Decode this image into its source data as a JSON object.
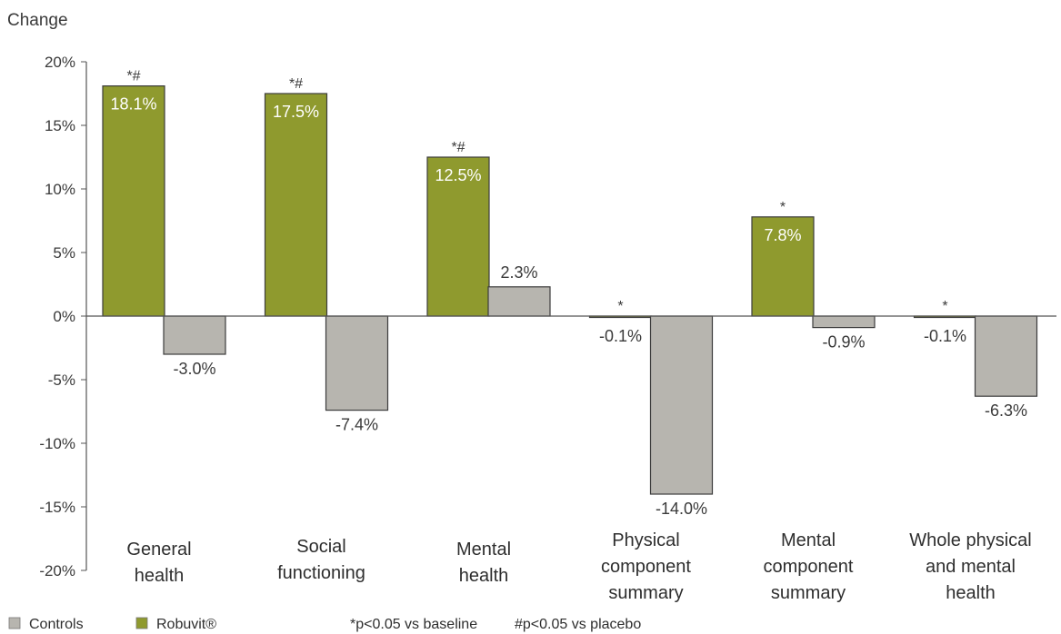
{
  "chart_data": {
    "type": "bar",
    "ylabel": "Change",
    "ylim": [
      -20,
      20
    ],
    "yticks": [
      20,
      15,
      10,
      5,
      0,
      -5,
      -10,
      -15,
      -20
    ],
    "ytick_labels": [
      "20%",
      "15%",
      "10%",
      "5%",
      "0%",
      "-5%",
      "-10%",
      "-15%",
      "-20%"
    ],
    "categories": [
      [
        "General",
        "health"
      ],
      [
        "Social",
        "functioning"
      ],
      [
        "Mental",
        "health"
      ],
      [
        "Physical",
        "component",
        "summary"
      ],
      [
        "Mental",
        "component",
        "summary"
      ],
      [
        "Whole physical",
        "and mental",
        "health"
      ]
    ],
    "series": [
      {
        "name": "Robuvit®",
        "color": "#8f9a2e",
        "values": [
          18.1,
          17.5,
          12.5,
          -0.1,
          7.8,
          -0.1
        ],
        "labels": [
          "18.1%",
          "17.5%",
          "12.5%",
          "-0.1%",
          "7.8%",
          "-0.1%"
        ],
        "significance": [
          "*#",
          "*#",
          "*#",
          "*",
          "*",
          "*"
        ]
      },
      {
        "name": "Controls",
        "color": "#b7b5af",
        "values": [
          -3.0,
          -7.4,
          2.3,
          -14.0,
          -0.9,
          -6.3
        ],
        "labels": [
          "-3.0%",
          "-7.4%",
          "2.3%",
          "-14.0%",
          "-0.9%",
          "-6.3%"
        ]
      }
    ],
    "legend": {
      "placement": "bottom-left",
      "items": [
        {
          "name": "Controls",
          "color": "#b7b5af"
        },
        {
          "name": "Robuvit®",
          "color": "#8f9a2e"
        }
      ]
    },
    "footnotes": [
      "*p<0.05 vs baseline",
      "#p<0.05 vs placebo"
    ],
    "grid": false
  }
}
